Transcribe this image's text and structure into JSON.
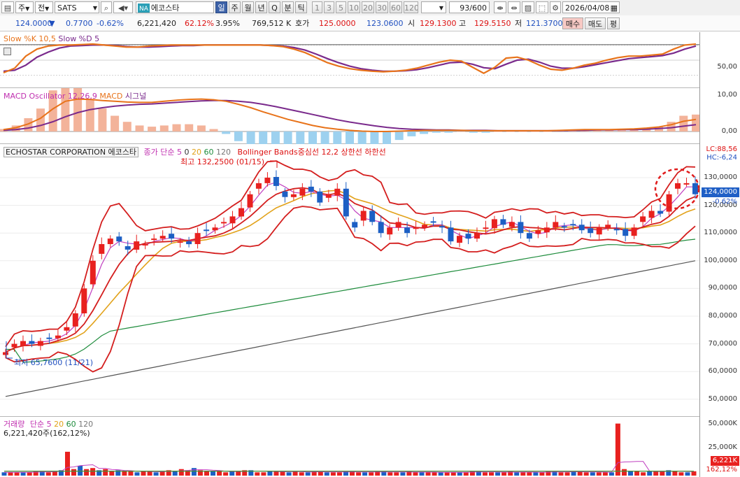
{
  "toolbar": {
    "period_label": "주",
    "market_label": "전",
    "symbol": "SATS",
    "badge": "NA",
    "stock_name": "에코스타",
    "periods": [
      "일",
      "주",
      "월",
      "년",
      "Q",
      "분",
      "틱"
    ],
    "active_period": "일",
    "minute_units": [
      "1",
      "3",
      "5",
      "10",
      "20",
      "30",
      "60",
      "120"
    ],
    "page_count": "93/600",
    "date": "2026/04/08"
  },
  "quote": {
    "price": "124.0000",
    "change_arrow": "▼",
    "change": "0.7700",
    "change_pct": "-0.62%",
    "volume": "6,221,420",
    "vol_ratio": "62.12%",
    "turnover": "3.95%",
    "amount": "769,512 K",
    "ask_label": "호가",
    "ask": "125.0000",
    "bid": "123.0600",
    "open_label": "시",
    "open": "129.1300",
    "high_label": "고",
    "high": "129.5150",
    "low_label": "저",
    "low": "121.3700",
    "buy_btn": "매수",
    "sell_btn": "매도",
    "eval_btn": "평"
  },
  "stoch": {
    "label_k": "Slow %K 10,5",
    "label_d": "Slow %D 5",
    "axis_label": "50,00",
    "k_color": "#e8731a",
    "d_color": "#7a2a8c",
    "k": [
      25,
      34,
      58,
      72,
      78,
      80,
      80,
      81,
      82,
      80,
      78,
      76,
      76,
      78,
      79,
      80,
      80,
      80,
      80,
      80,
      80,
      80,
      80,
      80,
      79,
      77,
      72,
      65,
      55,
      45,
      38,
      33,
      30,
      28,
      27,
      28,
      30,
      34,
      40,
      46,
      50,
      48,
      36,
      24,
      36,
      54,
      56,
      50,
      40,
      32,
      30,
      34,
      40,
      44,
      50,
      55,
      58,
      58,
      60,
      62,
      72,
      80,
      82
    ],
    "d": [
      28,
      30,
      40,
      56,
      66,
      74,
      78,
      79,
      80,
      80,
      79,
      77,
      76,
      76,
      77,
      78,
      79,
      79,
      80,
      80,
      80,
      80,
      80,
      80,
      79,
      78,
      75,
      70,
      62,
      53,
      45,
      38,
      33,
      30,
      28,
      28,
      29,
      31,
      35,
      40,
      45,
      46,
      42,
      35,
      33,
      42,
      50,
      52,
      46,
      38,
      34,
      34,
      37,
      41,
      45,
      49,
      53,
      55,
      57,
      59,
      64,
      72,
      78
    ]
  },
  "macd": {
    "label_osc": "MACD Oscillator 12,26,9",
    "label_macd": "MACD",
    "label_signal": "시그널",
    "axis": [
      "10,00",
      "0,00"
    ],
    "macd_color": "#e8731a",
    "signal_color": "#7a2a8c",
    "macd": [
      0.5,
      1.0,
      2.0,
      3.5,
      6.0,
      8.0,
      8.6,
      8.5,
      8.2,
      8.0,
      7.8,
      7.7,
      7.7,
      8.0,
      8.3,
      8.5,
      8.6,
      8.4,
      8.0,
      7.2,
      6.3,
      5.2,
      4.2,
      3.2,
      2.4,
      1.6,
      1.0,
      0.6,
      0.3,
      0.1,
      0.0,
      0.0,
      0.1,
      0.2,
      0.3,
      0.3,
      0.3,
      0.3,
      0.2,
      0.2,
      0.2,
      0.2,
      0.2,
      0.2,
      0.2,
      0.3,
      0.4,
      0.5,
      0.5,
      0.5,
      0.6,
      0.7,
      0.9,
      1.2,
      1.8,
      2.7,
      3.2
    ],
    "signal": [
      0.3,
      0.5,
      0.9,
      1.6,
      2.6,
      3.9,
      5.0,
      5.8,
      6.3,
      6.7,
      7.0,
      7.2,
      7.3,
      7.5,
      7.7,
      7.9,
      8.1,
      8.2,
      8.2,
      8.0,
      7.7,
      7.2,
      6.6,
      5.9,
      5.2,
      4.5,
      3.8,
      3.1,
      2.5,
      2.0,
      1.5,
      1.1,
      0.8,
      0.6,
      0.5,
      0.4,
      0.4,
      0.3,
      0.3,
      0.3,
      0.2,
      0.2,
      0.2,
      0.2,
      0.2,
      0.2,
      0.3,
      0.3,
      0.4,
      0.4,
      0.5,
      0.5,
      0.6,
      0.8,
      1.0,
      1.4,
      1.8
    ]
  },
  "price": {
    "title": "ECHOSTAR CORPORATION 에코스타",
    "ma_label": "종가 단순",
    "ma_periods": [
      "5",
      "0",
      "20",
      "60",
      "120"
    ],
    "ma_colors": [
      "#c040c0",
      "#ffffff",
      "#e2a21a",
      "#1e8c3c",
      "#555555"
    ],
    "bb_label": "Bollinger Bands중심선 12,2",
    "bb_upper_label": "상한선",
    "bb_lower_label": "하한선",
    "high_note": "최고 132,2500 (01/15)",
    "low_note": "최저 65,7600 (11/21)",
    "axis": [
      "130,0000",
      "120,0000",
      "110,0000",
      "100,0000",
      "90,0000",
      "80,0000",
      "70,0000",
      "60,0000",
      "50,0000"
    ],
    "lc": "LC:88,56",
    "hc": "HC:-6,24",
    "current_tag": "124,0000",
    "current_pct": "-0.62%",
    "up_color": "#e8211f",
    "down_color": "#1c5fc4",
    "closes": [
      67,
      70,
      71,
      70,
      71,
      72,
      73,
      76,
      81,
      90,
      100,
      106,
      108,
      107,
      104,
      107,
      106,
      108,
      109,
      108,
      107,
      106,
      110,
      111,
      112,
      114,
      116,
      119,
      124,
      128,
      130,
      127,
      123,
      124,
      126,
      125,
      121,
      124,
      126,
      116,
      112,
      118,
      114,
      110,
      112,
      114,
      110,
      112,
      113,
      114,
      112,
      107,
      109,
      108,
      110,
      112,
      115,
      113,
      114,
      110,
      108,
      111,
      112,
      114,
      112,
      113,
      111,
      110,
      112,
      113,
      111,
      109,
      112,
      116,
      118,
      117,
      124,
      128,
      128,
      124
    ]
  },
  "volume": {
    "label": "거래량",
    "ma_label": "단순",
    "ma_periods": [
      "5",
      "20",
      "60",
      "120"
    ],
    "summary": "6,221,420주(162,12%)",
    "axis": [
      "50,000K",
      "25,000K"
    ],
    "current_tag": "6,221K",
    "current_pct": "162,12%",
    "values": [
      3,
      3,
      3,
      3,
      3,
      4,
      4,
      3,
      4,
      5,
      22,
      6,
      9,
      6,
      7,
      5,
      6,
      4,
      5,
      4,
      4,
      3,
      4,
      4,
      3,
      4,
      5,
      4,
      6,
      5,
      7,
      5,
      4,
      4,
      4,
      3,
      4,
      4,
      5,
      5,
      3,
      3,
      4,
      4,
      4,
      3,
      4,
      3,
      3,
      4,
      4,
      3,
      3,
      3,
      4,
      4,
      3,
      3,
      3,
      4,
      4,
      3,
      3,
      3,
      4,
      3,
      3,
      3,
      3,
      3,
      3,
      3,
      3,
      3,
      4,
      4,
      3,
      3,
      3,
      3,
      4,
      3,
      3,
      3,
      3,
      3,
      4,
      4,
      3,
      3,
      4,
      4,
      3,
      3,
      3,
      3,
      3,
      48,
      6,
      4,
      4,
      3,
      4,
      4,
      4,
      5,
      4,
      3,
      3,
      4
    ]
  }
}
